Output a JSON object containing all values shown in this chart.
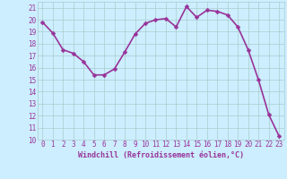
{
  "x": [
    0,
    1,
    2,
    3,
    4,
    5,
    6,
    7,
    8,
    9,
    10,
    11,
    12,
    13,
    14,
    15,
    16,
    17,
    18,
    19,
    20,
    21,
    22,
    23
  ],
  "y": [
    19.8,
    18.9,
    17.5,
    17.2,
    16.5,
    15.4,
    15.4,
    15.9,
    17.3,
    18.8,
    19.7,
    20.0,
    20.1,
    19.4,
    21.1,
    20.2,
    20.8,
    20.7,
    20.4,
    19.4,
    17.5,
    15.0,
    12.1,
    10.3
  ],
  "line_color": "#993399",
  "marker_color": "#993399",
  "bg_color": "#cceeff",
  "grid_color": "#aacccc",
  "xlabel": "Windchill (Refroidissement éolien,°C)",
  "xlim": [
    -0.5,
    23.5
  ],
  "ylim": [
    10,
    21.5
  ],
  "yticks": [
    10,
    11,
    12,
    13,
    14,
    15,
    16,
    17,
    18,
    19,
    20,
    21
  ],
  "xticks": [
    0,
    1,
    2,
    3,
    4,
    5,
    6,
    7,
    8,
    9,
    10,
    11,
    12,
    13,
    14,
    15,
    16,
    17,
    18,
    19,
    20,
    21,
    22,
    23
  ],
  "tick_color": "#993399",
  "label_color": "#993399",
  "linewidth": 1.2,
  "markersize": 2.5,
  "tick_fontsize": 5.5,
  "xlabel_fontsize": 6.0
}
